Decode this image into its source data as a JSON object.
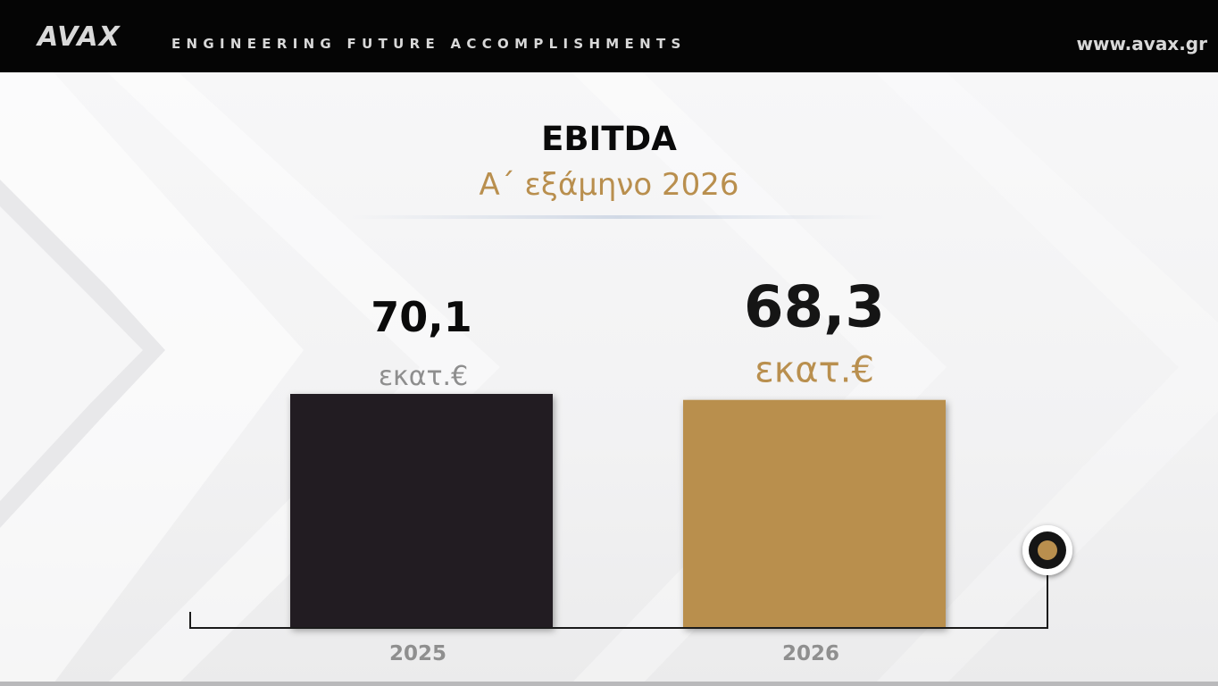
{
  "header": {
    "logo": "AVAX",
    "tagline": "ENGINEERING FUTURE ACCOMPLISHMENTS",
    "website": "www.avax.gr"
  },
  "chart_data": {
    "type": "bar",
    "title": "EBITDA",
    "subtitle": "Α΄ εξάμηνο 2026",
    "categories": [
      "2025",
      "2026"
    ],
    "values": [
      70.1,
      68.3
    ],
    "value_labels": [
      "70,1",
      "68,3"
    ],
    "unit": "εκατ.€",
    "colors": [
      "#221f20",
      "#b98f4e"
    ],
    "label_colors": [
      "#0a0a0a",
      "#151515"
    ],
    "unit_colors": [
      "#8e8e8e",
      "#b98f4e"
    ],
    "axis_color": "#1a1a1a",
    "category_label_color": "#8f8f8f",
    "marker_inner_color": "#b98f4e",
    "grid": false
  }
}
